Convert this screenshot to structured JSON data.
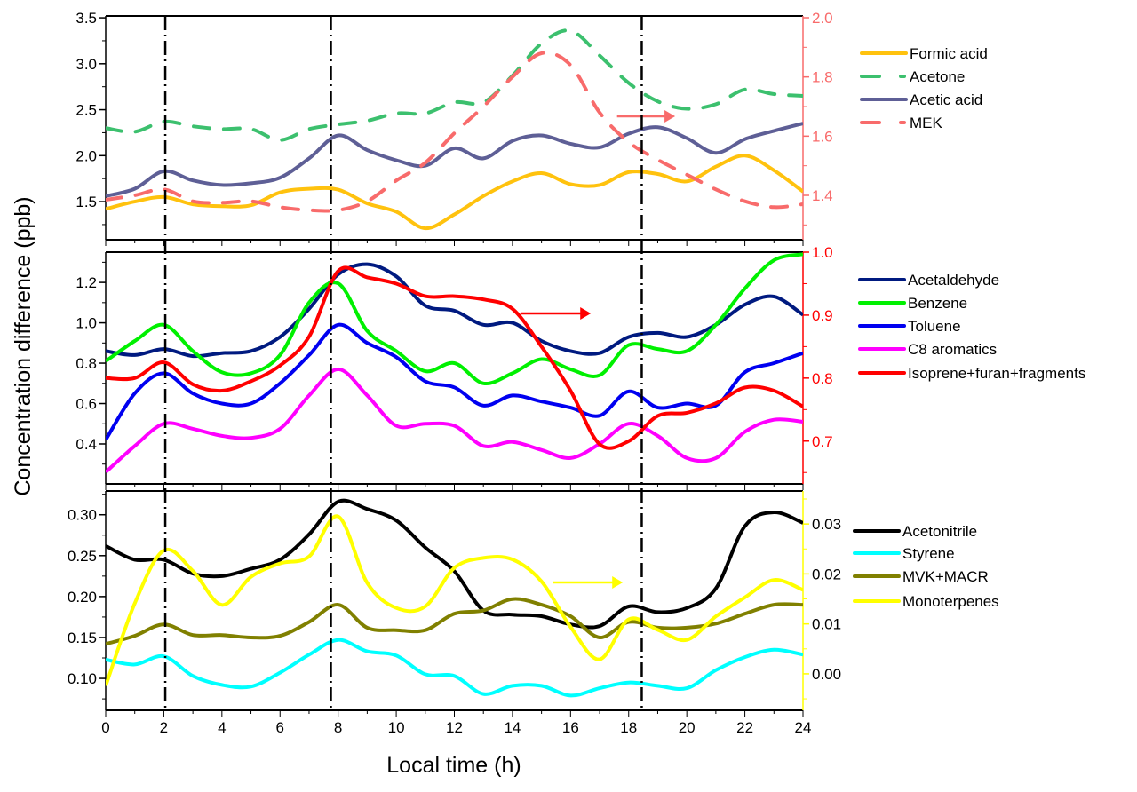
{
  "chart_data": {
    "type": "line",
    "xlabel": "Local time (h)",
    "ylabel": "Concentration difference (ppb)",
    "xlim": [
      0,
      24
    ],
    "xticks": [
      0,
      2,
      4,
      6,
      8,
      10,
      12,
      14,
      16,
      18,
      20,
      22,
      24
    ],
    "x": [
      0,
      1,
      2,
      3,
      4,
      5,
      6,
      7,
      8,
      9,
      10,
      11,
      12,
      13,
      14,
      15,
      16,
      17,
      18,
      19,
      20,
      21,
      22,
      23,
      24
    ],
    "reference_lines_hours": [
      2.05,
      7.75,
      18.45
    ],
    "grid": false,
    "legend_placement": "right",
    "panels": [
      {
        "left_axis": {
          "ylim": [
            1.085,
            3.52
          ],
          "ticks": [
            1.5,
            2.0,
            2.5,
            3.0,
            3.5
          ],
          "tick_labels": [
            "1.5",
            "2.0",
            "2.5",
            "3.0",
            "3.5"
          ],
          "color": "#000000"
        },
        "right_axis": {
          "ylim": [
            1.25,
            2.006
          ],
          "ticks": [
            1.4,
            1.6,
            1.8,
            2.0
          ],
          "tick_labels": [
            "1.4",
            "1.6",
            "1.8",
            "2.0"
          ],
          "color": "#f86b6b"
        },
        "series": [
          {
            "name": "Formic acid",
            "axis": "left",
            "color": "#ffc20e",
            "dash": "solid",
            "values": [
              1.42,
              1.5,
              1.55,
              1.47,
              1.45,
              1.46,
              1.6,
              1.64,
              1.63,
              1.48,
              1.39,
              1.21,
              1.36,
              1.56,
              1.72,
              1.81,
              1.69,
              1.68,
              1.82,
              1.8,
              1.72,
              1.88,
              2.0,
              1.84,
              1.61
            ]
          },
          {
            "name": "Acetone",
            "axis": "left",
            "color": "#3cc06e",
            "dash": "dash",
            "values": [
              2.3,
              2.26,
              2.37,
              2.32,
              2.29,
              2.29,
              2.17,
              2.29,
              2.34,
              2.38,
              2.46,
              2.46,
              2.58,
              2.58,
              2.87,
              3.22,
              3.36,
              3.09,
              2.79,
              2.59,
              2.51,
              2.56,
              2.72,
              2.67,
              2.65
            ]
          },
          {
            "name": "Acetic  acid",
            "axis": "left",
            "color": "#5e5f96",
            "dash": "solid",
            "values": [
              1.56,
              1.64,
              1.83,
              1.73,
              1.68,
              1.7,
              1.76,
              1.97,
              2.22,
              2.06,
              1.95,
              1.89,
              2.08,
              1.97,
              2.16,
              2.22,
              2.13,
              2.09,
              2.24,
              2.31,
              2.19,
              2.03,
              2.18,
              2.27,
              2.35
            ]
          },
          {
            "name": "MEK",
            "axis": "right",
            "color": "#f86b6b",
            "dash": "dash",
            "values": [
              1.385,
              1.4,
              1.42,
              1.38,
              1.375,
              1.38,
              1.36,
              1.35,
              1.35,
              1.38,
              1.45,
              1.51,
              1.61,
              1.7,
              1.8,
              1.88,
              1.84,
              1.68,
              1.58,
              1.52,
              1.47,
              1.42,
              1.38,
              1.36,
              1.37
            ]
          }
        ]
      },
      {
        "left_axis": {
          "ylim": [
            0.202,
            1.35
          ],
          "ticks": [
            0.4,
            0.6,
            0.8,
            1.0,
            1.2
          ],
          "tick_labels": [
            "0.4",
            "0.6",
            "0.8",
            "1.0",
            "1.2"
          ],
          "color": "#000000"
        },
        "right_axis": {
          "ylim": [
            0.632,
            1.0
          ],
          "ticks": [
            0.7,
            0.8,
            0.9,
            1.0
          ],
          "tick_labels": [
            "0.7",
            "0.8",
            "0.9",
            "1.0"
          ],
          "color": "#ff0000"
        },
        "series": [
          {
            "name": "Acetaldehyde",
            "axis": "left",
            "color": "#001a80",
            "dash": "solid",
            "values": [
              0.86,
              0.84,
              0.87,
              0.835,
              0.85,
              0.86,
              0.93,
              1.07,
              1.24,
              1.29,
              1.23,
              1.085,
              1.06,
              0.99,
              1.0,
              0.91,
              0.86,
              0.85,
              0.93,
              0.95,
              0.93,
              0.99,
              1.09,
              1.13,
              1.04
            ]
          },
          {
            "name": "Benzene",
            "axis": "left",
            "color": "#00f000",
            "dash": "solid",
            "values": [
              0.81,
              0.91,
              0.99,
              0.86,
              0.755,
              0.75,
              0.84,
              1.1,
              1.195,
              0.96,
              0.86,
              0.76,
              0.8,
              0.7,
              0.75,
              0.82,
              0.77,
              0.74,
              0.89,
              0.87,
              0.86,
              0.99,
              1.17,
              1.31,
              1.34
            ]
          },
          {
            "name": "Toluene",
            "axis": "left",
            "color": "#0000f0",
            "dash": "solid",
            "values": [
              0.42,
              0.65,
              0.75,
              0.65,
              0.6,
              0.6,
              0.7,
              0.84,
              0.99,
              0.9,
              0.83,
              0.71,
              0.68,
              0.59,
              0.64,
              0.61,
              0.58,
              0.54,
              0.66,
              0.58,
              0.6,
              0.59,
              0.755,
              0.8,
              0.85
            ]
          },
          {
            "name": "C8 aromatics",
            "axis": "left",
            "color": "#ff00ff",
            "dash": "solid",
            "values": [
              0.26,
              0.39,
              0.5,
              0.475,
              0.44,
              0.43,
              0.475,
              0.64,
              0.77,
              0.64,
              0.49,
              0.5,
              0.49,
              0.39,
              0.41,
              0.37,
              0.33,
              0.4,
              0.5,
              0.44,
              0.33,
              0.33,
              0.46,
              0.52,
              0.51
            ]
          },
          {
            "name": "Isoprene+furan+fragments",
            "axis": "right",
            "color": "#ff0000",
            "dash": "solid",
            "values": [
              0.8,
              0.8,
              0.825,
              0.79,
              0.78,
              0.795,
              0.82,
              0.866,
              0.97,
              0.96,
              0.95,
              0.93,
              0.93,
              0.925,
              0.91,
              0.85,
              0.78,
              0.695,
              0.7,
              0.74,
              0.745,
              0.76,
              0.785,
              0.78,
              0.755
            ]
          }
        ]
      },
      {
        "left_axis": {
          "ylim": [
            0.061,
            0.329
          ],
          "ticks": [
            0.1,
            0.15,
            0.2,
            0.25,
            0.3
          ],
          "tick_labels": [
            "0.10",
            "0.15",
            "0.20",
            "0.25",
            "0.30"
          ],
          "color": "#000000"
        },
        "right_axis": {
          "ylim": [
            -0.0073,
            0.0366
          ],
          "ticks": [
            0.0,
            0.01,
            0.02,
            0.03
          ],
          "tick_labels": [
            "0.00",
            "0.01",
            "0.02",
            "0.03"
          ],
          "color": "#ffff00"
        },
        "series": [
          {
            "name": "Acetonitrile",
            "axis": "left",
            "color": "#000000",
            "dash": "solid",
            "values": [
              0.262,
              0.245,
              0.245,
              0.228,
              0.225,
              0.234,
              0.245,
              0.276,
              0.316,
              0.307,
              0.293,
              0.26,
              0.231,
              0.183,
              0.178,
              0.176,
              0.166,
              0.164,
              0.188,
              0.181,
              0.186,
              0.21,
              0.286,
              0.303,
              0.29
            ]
          },
          {
            "name": "Styrene",
            "axis": "left",
            "color": "#00ffff",
            "dash": "solid",
            "values": [
              0.123,
              0.117,
              0.127,
              0.103,
              0.092,
              0.09,
              0.107,
              0.129,
              0.147,
              0.133,
              0.128,
              0.105,
              0.103,
              0.081,
              0.091,
              0.091,
              0.079,
              0.088,
              0.095,
              0.091,
              0.088,
              0.11,
              0.126,
              0.135,
              0.129
            ]
          },
          {
            "name": "MVK+MACR",
            "axis": "left",
            "color": "#808000",
            "dash": "solid",
            "values": [
              0.142,
              0.152,
              0.166,
              0.153,
              0.153,
              0.15,
              0.152,
              0.169,
              0.19,
              0.162,
              0.159,
              0.159,
              0.179,
              0.183,
              0.197,
              0.19,
              0.176,
              0.15,
              0.169,
              0.162,
              0.162,
              0.167,
              0.179,
              0.19,
              0.19
            ]
          },
          {
            "name": "Monoterpenes",
            "axis": "right",
            "color": "#ffff00",
            "dash": "solid",
            "values": [
              -0.0024,
              0.0141,
              0.0247,
              0.0206,
              0.0138,
              0.0194,
              0.0221,
              0.0235,
              0.0315,
              0.0182,
              0.0132,
              0.0135,
              0.0212,
              0.0232,
              0.0229,
              0.0185,
              0.0094,
              0.0029,
              0.0109,
              0.0088,
              0.0068,
              0.0115,
              0.0153,
              0.0188,
              0.0168
            ]
          }
        ]
      }
    ]
  }
}
